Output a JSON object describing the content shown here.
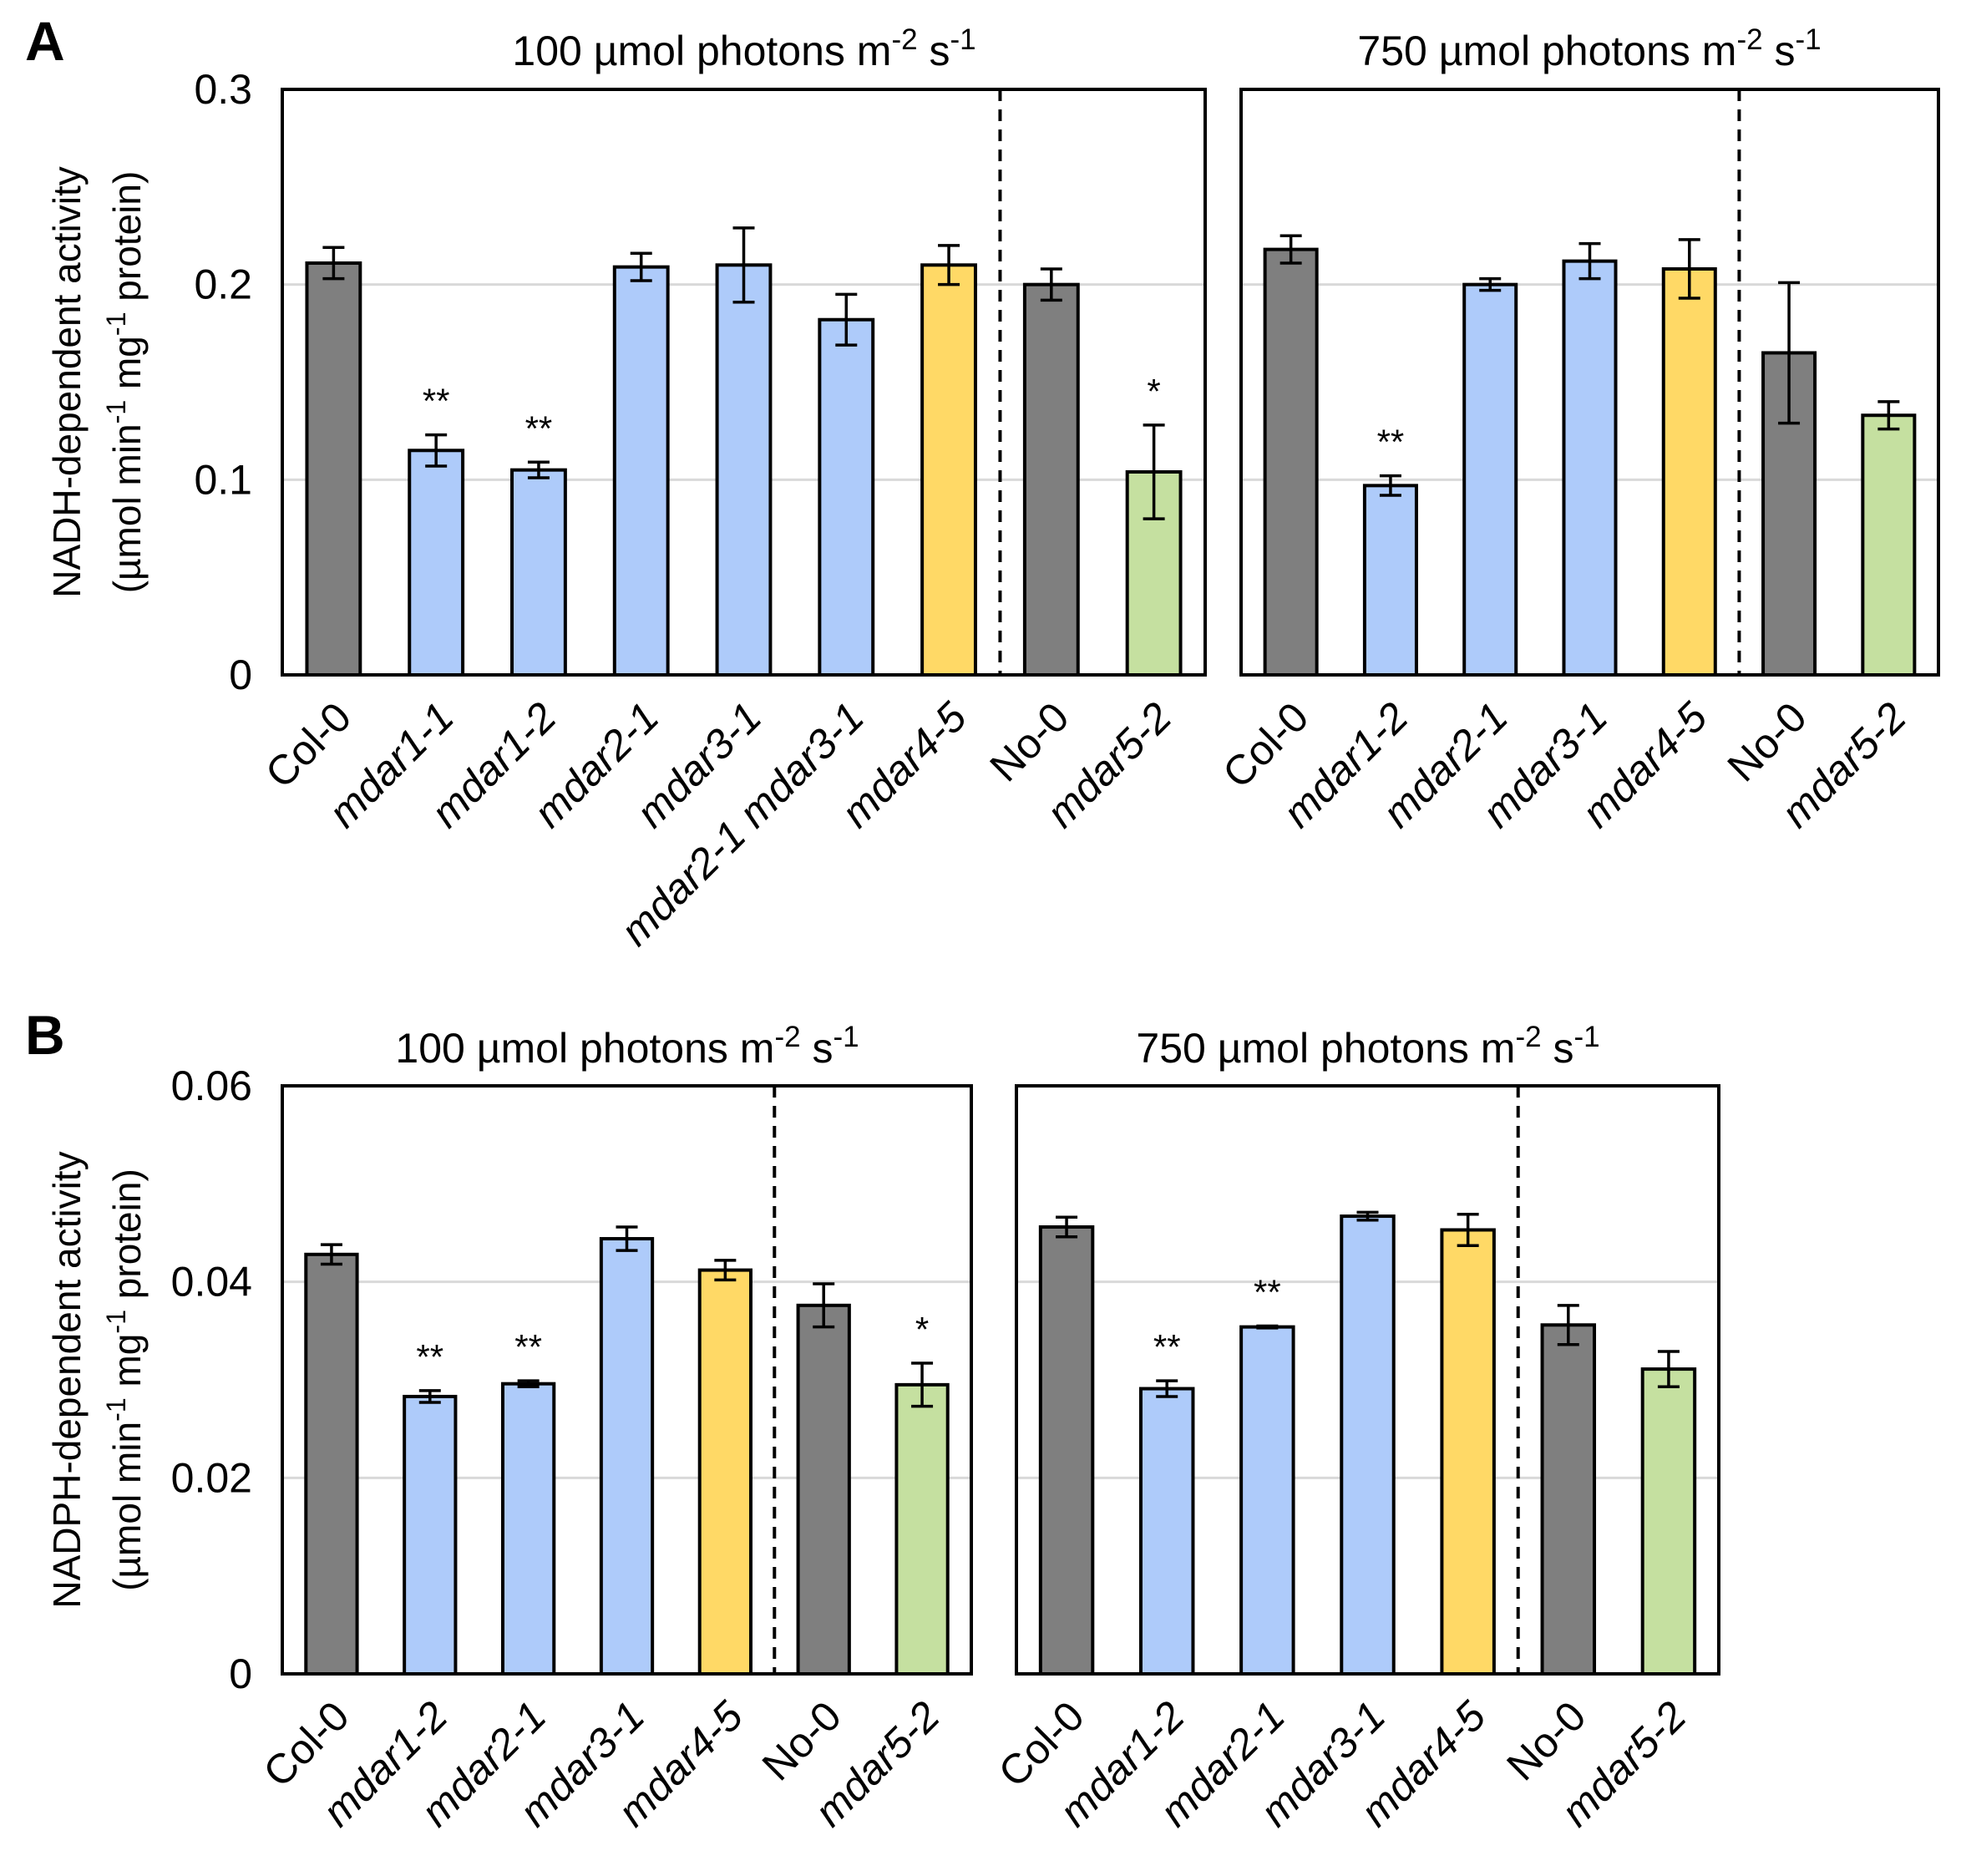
{
  "colors": {
    "wildtype": "#7f7f7f",
    "mdar1_2_3": "#aecbfa",
    "mdar4": "#ffd966",
    "mdar5": "#c5e0a0",
    "grid": "#d9d9d9",
    "frame": "#000000"
  },
  "chart_data": [
    {
      "type": "bar",
      "panel": "A",
      "ylabel": "NADH-dependent activity",
      "ylabel_units": "(µmol min-1 mg-1 protein)",
      "ylabel_units_parts": [
        "(µmol min",
        "-1",
        " mg",
        "-1",
        " protein)"
      ],
      "ylim": [
        0,
        0.3
      ],
      "yticks": [
        0,
        0.1,
        0.2,
        0.3
      ],
      "ytick_labels": [
        "0",
        "0.1",
        "0.2",
        "0.3"
      ],
      "grid": true,
      "subplots": [
        {
          "title": "100 µmol photons m-2 s-1",
          "title_parts": [
            "100 µmol photons m",
            "-2",
            " s",
            "-1"
          ],
          "categories": [
            "Col-0",
            "mdar1-1",
            "mdar1-2",
            "mdar2-1",
            "mdar3-1",
            "mdar2-1 mdar3-1",
            "mdar4-5",
            "No-0",
            "mdar5-2"
          ],
          "values": [
            0.211,
            0.115,
            0.105,
            0.209,
            0.21,
            0.182,
            0.21,
            0.2,
            0.104
          ],
          "errors": [
            0.008,
            0.008,
            0.004,
            0.007,
            0.019,
            0.013,
            0.01,
            0.008,
            0.024
          ],
          "significance": [
            "",
            "**",
            "**",
            "",
            "",
            "",
            "",
            "",
            "*"
          ],
          "color_groups": [
            "wildtype",
            "mdar1_2_3",
            "mdar1_2_3",
            "mdar1_2_3",
            "mdar1_2_3",
            "mdar1_2_3",
            "mdar4",
            "wildtype",
            "mdar5"
          ],
          "separator_after_index": 6
        },
        {
          "title": "750 µmol photons m-2 s-1",
          "title_parts": [
            "750 µmol photons m",
            "-2",
            " s",
            "-1"
          ],
          "categories": [
            "Col-0",
            "mdar1-2",
            "mdar2-1",
            "mdar3-1",
            "mdar4-5",
            "No-0",
            "mdar5-2"
          ],
          "values": [
            0.218,
            0.097,
            0.2,
            0.212,
            0.208,
            0.165,
            0.133
          ],
          "errors": [
            0.007,
            0.005,
            0.003,
            0.009,
            0.015,
            0.036,
            0.007
          ],
          "significance": [
            "",
            "**",
            "",
            "",
            "",
            "",
            ""
          ],
          "color_groups": [
            "wildtype",
            "mdar1_2_3",
            "mdar1_2_3",
            "mdar1_2_3",
            "mdar4",
            "wildtype",
            "mdar5"
          ],
          "separator_after_index": 4
        }
      ]
    },
    {
      "type": "bar",
      "panel": "B",
      "ylabel": "NADPH-dependent activity",
      "ylabel_units": "(µmol min-1 mg-1 protein)",
      "ylabel_units_parts": [
        "(µmol min",
        "-1",
        " mg",
        "-1",
        " protein)"
      ],
      "ylim": [
        0,
        0.06
      ],
      "yticks": [
        0,
        0.02,
        0.04,
        0.06
      ],
      "ytick_labels": [
        "0",
        "0.02",
        "0.04",
        "0.06"
      ],
      "grid": true,
      "subplots": [
        {
          "title": "100 µmol photons m-2 s-1",
          "title_parts": [
            "100 µmol photons m",
            "-2",
            " s",
            "-1"
          ],
          "categories": [
            "Col-0",
            "mdar1-2",
            "mdar2-1",
            "mdar3-1",
            "mdar4-5",
            "No-0",
            "mdar5-2"
          ],
          "values": [
            0.0428,
            0.0283,
            0.0296,
            0.0444,
            0.0412,
            0.0376,
            0.0295
          ],
          "errors": [
            0.001,
            0.0006,
            0.0003,
            0.0012,
            0.001,
            0.0022,
            0.0022
          ],
          "significance": [
            "",
            "**",
            "**",
            "",
            "",
            "",
            "*"
          ],
          "color_groups": [
            "wildtype",
            "mdar1_2_3",
            "mdar1_2_3",
            "mdar1_2_3",
            "mdar4",
            "wildtype",
            "mdar5"
          ],
          "separator_after_index": 4
        },
        {
          "title": "750 µmol photons m-2 s-1",
          "title_parts": [
            "750 µmol photons m",
            "-2",
            " s",
            "-1"
          ],
          "categories": [
            "Col-0",
            "mdar1-2",
            "mdar2-1",
            "mdar3-1",
            "mdar4-5",
            "No-0",
            "mdar5-2"
          ],
          "values": [
            0.0456,
            0.0291,
            0.0354,
            0.0467,
            0.0453,
            0.0356,
            0.0311
          ],
          "errors": [
            0.001,
            0.0008,
            0.0001,
            0.0004,
            0.0016,
            0.002,
            0.0018
          ],
          "significance": [
            "",
            "**",
            "**",
            "",
            "",
            "",
            ""
          ],
          "color_groups": [
            "wildtype",
            "mdar1_2_3",
            "mdar1_2_3",
            "mdar1_2_3",
            "mdar4",
            "wildtype",
            "mdar5"
          ],
          "separator_after_index": 4
        }
      ]
    }
  ]
}
